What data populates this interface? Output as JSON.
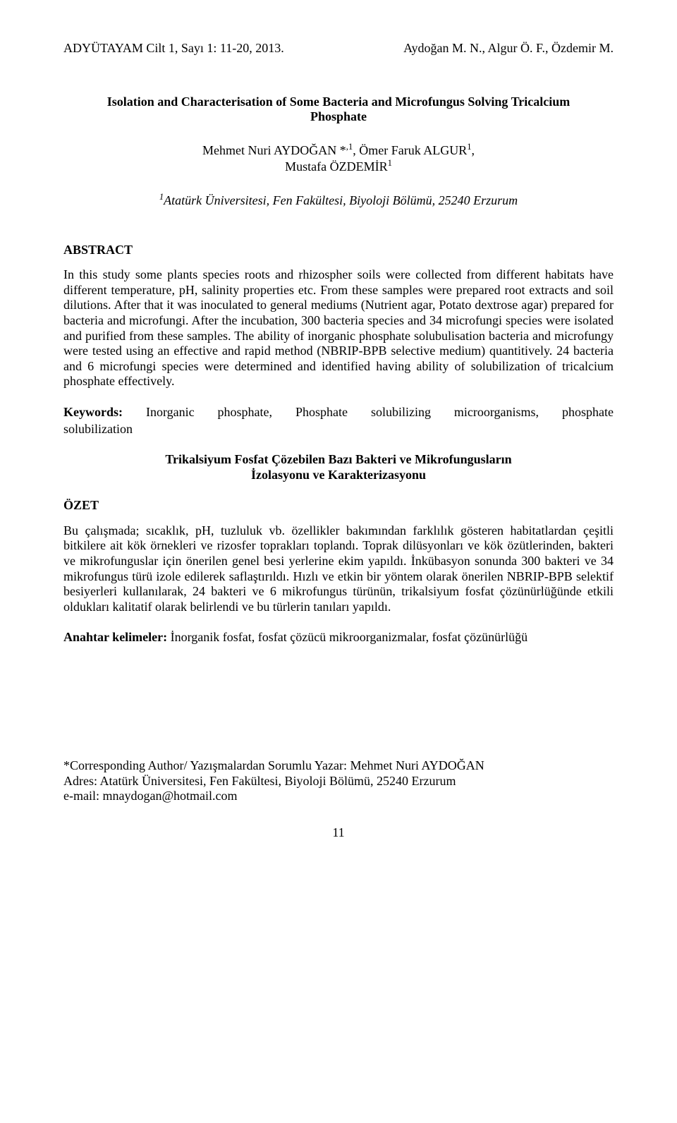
{
  "header": {
    "left": "ADYÜTAYAM Cilt 1, Sayı 1: 11-20, 2013.",
    "right": "Aydoğan M. N., Algur Ö. F., Özdemir M."
  },
  "title": {
    "line1": "Isolation and Characterisation of Some Bacteria and Microfungus Solving Tricalcium",
    "line2": "Phosphate"
  },
  "authors": {
    "line1_part1": "Mehmet Nuri AYDOĞAN *",
    "line1_sup1": ",1",
    "line1_part2": ", Ömer Faruk ALGUR",
    "line1_sup2": "1",
    "line1_part3": ",",
    "line2_part1": "Mustafa ÖZDEMİR",
    "line2_sup1": "1"
  },
  "affiliation": {
    "sup": "1",
    "text": "Atatürk Üniversitesi, Fen Fakültesi, Biyoloji Bölümü, 25240 Erzurum"
  },
  "abstract": {
    "heading": "ABSTRACT",
    "body": "In this study some plants species roots and rhizospher soils were collected from different habitats have different temperature, pH, salinity properties etc. From these samples were prepared root extracts and soil dilutions. After that it was inoculated to general mediums (Nutrient agar, Potato dextrose agar) prepared for bacteria and microfungi. After the incubation, 300 bacteria species and 34 microfungi species were isolated and purified from these samples. The ability of inorganic phosphate solubulisation bacteria and microfungy were tested using an effective and rapid method  (NBRIP-BPB selective medium) quantitively. 24 bacteria and 6 microfungi species were determined and identified having ability of solubilization of tricalcium phosphate effectively."
  },
  "keywords_en": {
    "label": "Keywords:",
    "line1_rest": " Inorganic phosphate, Phosphate solubilizing microorganisms, phosphate",
    "line2": "solubilization"
  },
  "title_tr": {
    "line1": "Trikalsiyum Fosfat Çözebilen Bazı Bakteri ve Mikrofungusların",
    "line2": "İzolasyonu ve Karakterizasyonu"
  },
  "ozet": {
    "heading": "ÖZET",
    "body": "Bu çalışmada; sıcaklık, pH, tuzluluk vb. özellikler bakımından farklılık gösteren habitatlardan çeşitli bitkilere ait kök örnekleri ve rizosfer toprakları toplandı. Toprak dilüsyonları ve kök özütlerinden, bakteri ve mikrofunguslar için önerilen genel besi yerlerine ekim yapıldı. İnkübasyon sonunda 300 bakteri ve 34 mikrofungus türü izole edilerek saflaştırıldı. Hızlı ve etkin bir yöntem olarak önerilen NBRIP-BPB selektif besiyerleri kullanılarak, 24 bakteri ve 6 mikrofungus türünün, trikalsiyum fosfat çözünürlüğünde etkili oldukları kalitatif olarak belirlendi ve bu türlerin tanıları yapıldı."
  },
  "keywords_tr": {
    "label": "Anahtar kelimeler:",
    "text": " İnorganik fosfat, fosfat çözücü mikroorganizmalar, fosfat çözünürlüğü"
  },
  "corresponding": {
    "line1": "*Corresponding Author/ Yazışmalardan Sorumlu Yazar: Mehmet Nuri AYDOĞAN",
    "line2": "Adres: Atatürk Üniversitesi, Fen Fakültesi, Biyoloji Bölümü, 25240 Erzurum",
    "line3": "e-mail: mnaydogan@hotmail.com"
  },
  "page_number": "11"
}
